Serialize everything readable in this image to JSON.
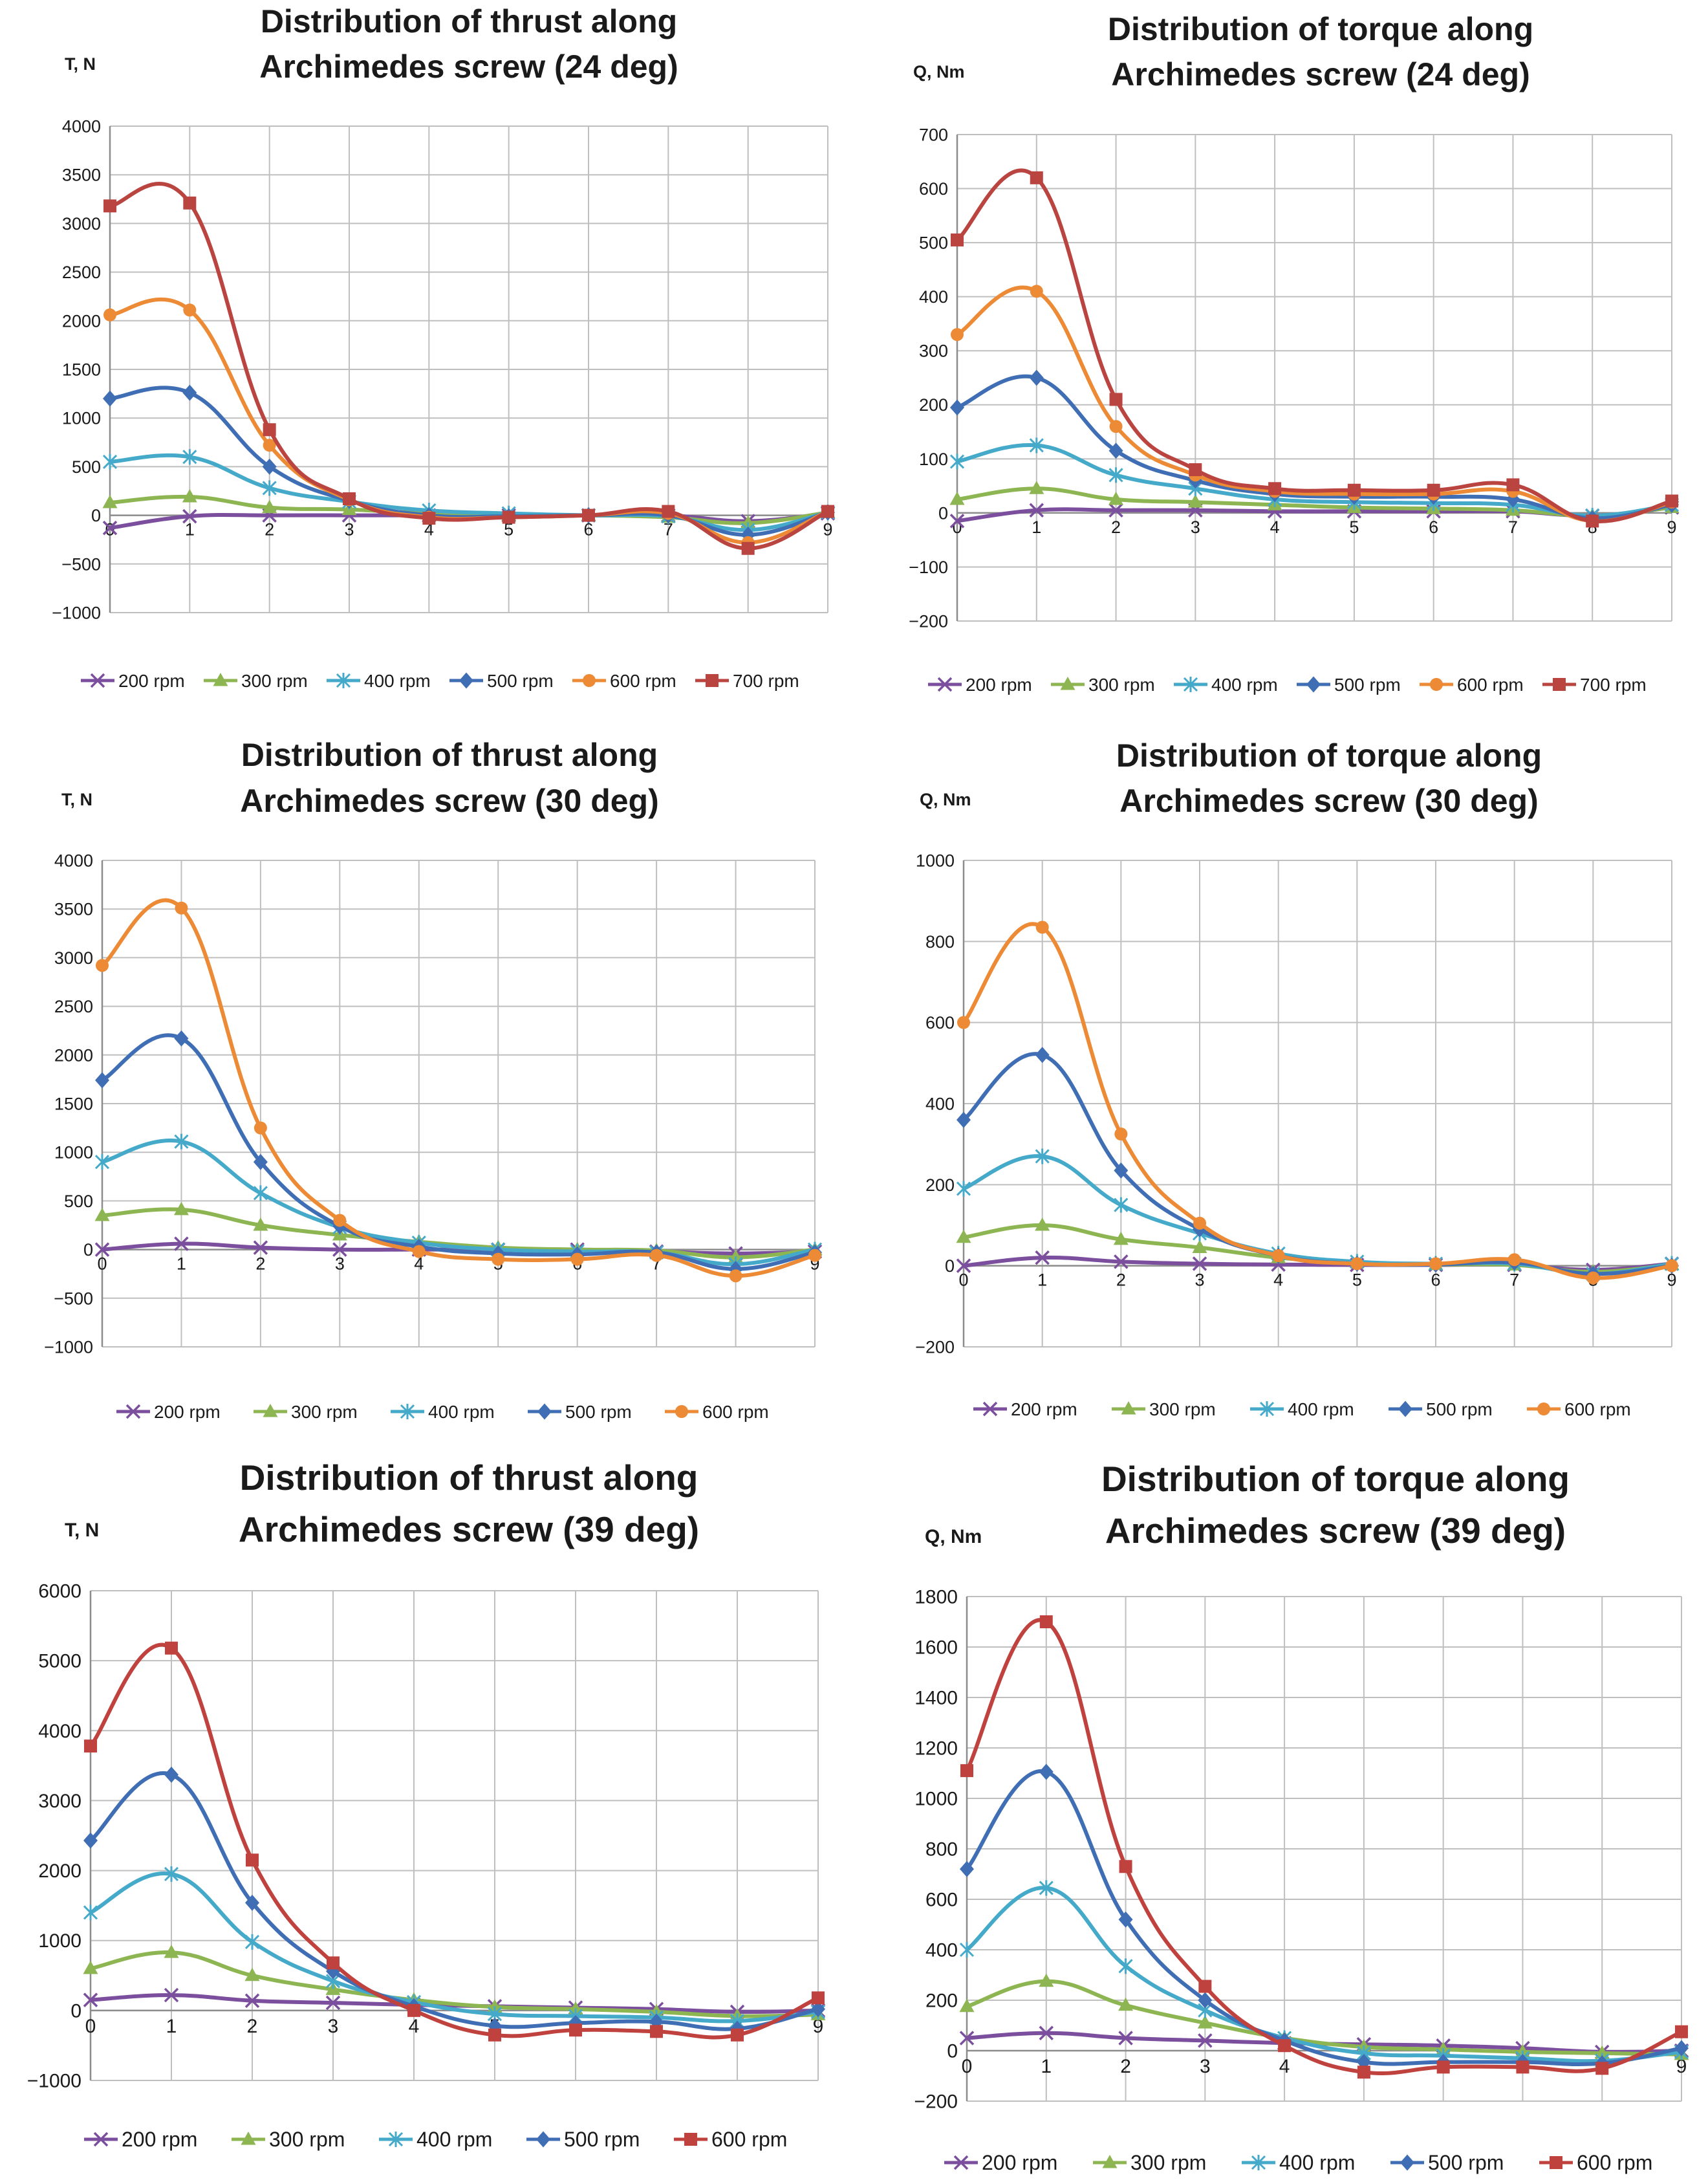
{
  "colors": {
    "200 rpm": "#7b4f9d",
    "300 rpm": "#8db552",
    "400 rpm": "#45aac9",
    "500 rpm": "#3f6eb4",
    "600 rpm": "#ec8a35",
    "600 rpm alt": "#c0423e",
    "700 rpm": "#b94440"
  },
  "chart_data": [
    {
      "type": "line",
      "title": [
        "Distribution of thrust along",
        "Archimedes screw (24 deg)"
      ],
      "ylabel": "T, N",
      "xlabel": "",
      "x": [
        0,
        1,
        2,
        3,
        4,
        5,
        6,
        7,
        8,
        9
      ],
      "ylim": [
        -1000,
        4000
      ],
      "ystep": 500,
      "yticks": [
        "−1000",
        "−500",
        "0",
        "500",
        "1000",
        "1500",
        "2000",
        "2500",
        "3000",
        "3500",
        "4000"
      ],
      "xticks": [
        "0",
        "1",
        "2",
        "3",
        "4",
        "5",
        "6",
        "7",
        "8",
        "9"
      ],
      "grid": true,
      "legend": "bottom",
      "series": [
        {
          "name": "200 rpm",
          "marker": "x",
          "colorKey": "200 rpm",
          "values": [
            -130,
            -10,
            0,
            0,
            0,
            0,
            0,
            0,
            -60,
            20
          ]
        },
        {
          "name": "300 rpm",
          "marker": "triangle",
          "colorKey": "300 rpm",
          "values": [
            130,
            190,
            80,
            60,
            20,
            0,
            0,
            -20,
            -80,
            30
          ]
        },
        {
          "name": "400 rpm",
          "marker": "star",
          "colorKey": "400 rpm",
          "values": [
            550,
            600,
            280,
            140,
            50,
            20,
            0,
            -10,
            -150,
            30
          ]
        },
        {
          "name": "500 rpm",
          "marker": "diamond",
          "colorKey": "500 rpm",
          "values": [
            1200,
            1260,
            500,
            150,
            0,
            -10,
            0,
            0,
            -200,
            30
          ]
        },
        {
          "name": "600 rpm",
          "marker": "circle",
          "colorKey": "600 rpm",
          "values": [
            2060,
            2110,
            720,
            160,
            -20,
            -20,
            0,
            20,
            -280,
            40
          ]
        },
        {
          "name": "700 rpm",
          "marker": "square",
          "colorKey": "700 rpm",
          "values": [
            3180,
            3210,
            880,
            170,
            -30,
            -20,
            0,
            40,
            -340,
            40
          ]
        }
      ]
    },
    {
      "type": "line",
      "title": [
        "Distribution of torque along",
        "Archimedes screw (24 deg)"
      ],
      "ylabel": "Q, Nm",
      "xlabel": "",
      "x": [
        0,
        1,
        2,
        3,
        4,
        5,
        6,
        7,
        8,
        9
      ],
      "ylim": [
        -200,
        700
      ],
      "ystep": 100,
      "yticks": [
        "−200",
        "−100",
        "0",
        "100",
        "200",
        "300",
        "400",
        "500",
        "600",
        "700"
      ],
      "xticks": [
        "0",
        "1",
        "2",
        "3",
        "4",
        "5",
        "6",
        "7",
        "8",
        "9"
      ],
      "grid": true,
      "legend": "bottom",
      "series": [
        {
          "name": "200 rpm",
          "marker": "x",
          "colorKey": "200 rpm",
          "values": [
            -15,
            5,
            5,
            5,
            3,
            3,
            3,
            3,
            -5,
            10
          ]
        },
        {
          "name": "300 rpm",
          "marker": "triangle",
          "colorKey": "300 rpm",
          "values": [
            25,
            45,
            25,
            20,
            15,
            10,
            8,
            5,
            -5,
            10
          ]
        },
        {
          "name": "400 rpm",
          "marker": "star",
          "colorKey": "400 rpm",
          "values": [
            95,
            125,
            70,
            45,
            25,
            20,
            18,
            15,
            -5,
            15
          ]
        },
        {
          "name": "500 rpm",
          "marker": "diamond",
          "colorKey": "500 rpm",
          "values": [
            195,
            250,
            115,
            60,
            35,
            30,
            30,
            25,
            -10,
            15
          ]
        },
        {
          "name": "600 rpm",
          "marker": "circle",
          "colorKey": "600 rpm",
          "values": [
            330,
            410,
            160,
            70,
            40,
            35,
            35,
            40,
            -15,
            20
          ]
        },
        {
          "name": "700 rpm",
          "marker": "square",
          "colorKey": "700 rpm",
          "values": [
            505,
            620,
            210,
            80,
            45,
            42,
            42,
            52,
            -15,
            22
          ]
        }
      ]
    },
    {
      "type": "line",
      "title": [
        "Distribution of thrust along",
        "Archimedes screw (30 deg)"
      ],
      "ylabel": "T, N",
      "xlabel": "",
      "x": [
        0,
        1,
        2,
        3,
        4,
        5,
        6,
        7,
        8,
        9
      ],
      "ylim": [
        -1000,
        4000
      ],
      "ystep": 500,
      "yticks": [
        "−1000",
        "−500",
        "0",
        "500",
        "1000",
        "1500",
        "2000",
        "2500",
        "3000",
        "3500",
        "4000"
      ],
      "xticks": [
        "0",
        "1",
        "2",
        "3",
        "4",
        "5",
        "6",
        "7",
        "8",
        "9"
      ],
      "grid": true,
      "legend": "bottom",
      "series": [
        {
          "name": "200 rpm",
          "marker": "x",
          "colorKey": "200 rpm",
          "values": [
            0,
            60,
            20,
            0,
            0,
            0,
            0,
            -20,
            -40,
            -20
          ]
        },
        {
          "name": "300 rpm",
          "marker": "triangle",
          "colorKey": "300 rpm",
          "values": [
            350,
            410,
            250,
            150,
            80,
            20,
            0,
            -10,
            -80,
            0
          ]
        },
        {
          "name": "400 rpm",
          "marker": "star",
          "colorKey": "400 rpm",
          "values": [
            900,
            1110,
            580,
            230,
            70,
            0,
            -20,
            -30,
            -150,
            0
          ]
        },
        {
          "name": "500 rpm",
          "marker": "diamond",
          "colorKey": "500 rpm",
          "values": [
            1740,
            2170,
            900,
            240,
            30,
            -40,
            -50,
            -30,
            -200,
            -30
          ]
        },
        {
          "name": "600 rpm",
          "marker": "circle",
          "colorKey": "600 rpm",
          "values": [
            2920,
            3510,
            1250,
            300,
            -20,
            -100,
            -100,
            -60,
            -270,
            -60
          ]
        }
      ]
    },
    {
      "type": "line",
      "title": [
        "Distribution of torque along",
        "Archimedes screw (30 deg)"
      ],
      "ylabel": "Q, Nm",
      "xlabel": "",
      "x": [
        0,
        1,
        2,
        3,
        4,
        5,
        6,
        7,
        8,
        9
      ],
      "ylim": [
        -200,
        1000
      ],
      "ystep": 200,
      "yticks": [
        "−200",
        "0",
        "200",
        "400",
        "600",
        "800",
        "1000"
      ],
      "xticks": [
        "0",
        "1",
        "2",
        "3",
        "4",
        "5",
        "6",
        "7",
        "8",
        "9"
      ],
      "grid": true,
      "legend": "bottom",
      "series": [
        {
          "name": "200 rpm",
          "marker": "x",
          "colorKey": "200 rpm",
          "values": [
            0,
            20,
            10,
            5,
            3,
            2,
            2,
            2,
            -10,
            5
          ]
        },
        {
          "name": "300 rpm",
          "marker": "triangle",
          "colorKey": "300 rpm",
          "values": [
            70,
            100,
            65,
            45,
            20,
            8,
            3,
            2,
            -15,
            3
          ]
        },
        {
          "name": "400 rpm",
          "marker": "star",
          "colorKey": "400 rpm",
          "values": [
            190,
            270,
            150,
            80,
            30,
            10,
            5,
            5,
            -20,
            5
          ]
        },
        {
          "name": "500 rpm",
          "marker": "diamond",
          "colorKey": "500 rpm",
          "values": [
            360,
            520,
            235,
            90,
            25,
            5,
            3,
            8,
            -20,
            0
          ]
        },
        {
          "name": "600 rpm",
          "marker": "circle",
          "colorKey": "600 rpm",
          "values": [
            600,
            835,
            325,
            105,
            25,
            5,
            5,
            15,
            -30,
            0
          ]
        }
      ]
    },
    {
      "type": "line",
      "title": [
        "Distribution of thrust along",
        "Archimedes screw (39 deg)"
      ],
      "ylabel": "T, N",
      "xlabel": "",
      "x": [
        0,
        1,
        2,
        3,
        4,
        5,
        6,
        7,
        8,
        9
      ],
      "ylim": [
        -1000,
        6000
      ],
      "ystep": 1000,
      "yticks": [
        "−1000",
        "0",
        "1000",
        "2000",
        "3000",
        "4000",
        "5000",
        "6000"
      ],
      "xticks": [
        "0",
        "1",
        "2",
        "3",
        "4",
        "5",
        "6",
        "7",
        "8",
        "9"
      ],
      "grid": true,
      "legend": "bottom",
      "series": [
        {
          "name": "200 rpm",
          "marker": "x",
          "colorKey": "200 rpm",
          "values": [
            150,
            220,
            140,
            110,
            80,
            60,
            40,
            20,
            -20,
            0
          ]
        },
        {
          "name": "300 rpm",
          "marker": "triangle",
          "colorKey": "300 rpm",
          "values": [
            600,
            830,
            500,
            300,
            150,
            50,
            20,
            -20,
            -80,
            -60
          ]
        },
        {
          "name": "400 rpm",
          "marker": "star",
          "colorKey": "400 rpm",
          "values": [
            1400,
            1950,
            980,
            420,
            120,
            -50,
            -80,
            -100,
            -150,
            -20
          ]
        },
        {
          "name": "500 rpm",
          "marker": "diamond",
          "colorKey": "500 rpm",
          "values": [
            2430,
            3370,
            1540,
            560,
            60,
            -220,
            -180,
            -160,
            -260,
            20
          ]
        },
        {
          "name": "600 rpm",
          "marker": "square",
          "colorKey": "600 rpm alt",
          "values": [
            3780,
            5180,
            2150,
            680,
            0,
            -350,
            -280,
            -300,
            -350,
            180
          ]
        }
      ]
    },
    {
      "type": "line",
      "title": [
        "Distribution of torque along",
        "Archimedes screw (39 deg)"
      ],
      "ylabel": "Q, Nm",
      "xlabel": "",
      "x": [
        0,
        1,
        2,
        3,
        4,
        5,
        6,
        7,
        8,
        9
      ],
      "ylim": [
        -200,
        1800
      ],
      "ystep": 200,
      "yticks": [
        "−200",
        "0",
        "200",
        "400",
        "600",
        "800",
        "1000",
        "1200",
        "1400",
        "1600",
        "1800"
      ],
      "xticks": [
        "0",
        "1",
        "2",
        "3",
        "4",
        "5",
        "6",
        "7",
        "8",
        "9"
      ],
      "grid": true,
      "legend": "bottom",
      "series": [
        {
          "name": "200 rpm",
          "marker": "x",
          "colorKey": "200 rpm",
          "values": [
            50,
            70,
            50,
            40,
            30,
            25,
            20,
            10,
            -5,
            0
          ]
        },
        {
          "name": "300 rpm",
          "marker": "triangle",
          "colorKey": "300 rpm",
          "values": [
            175,
            275,
            180,
            110,
            50,
            15,
            5,
            -5,
            -10,
            -15
          ]
        },
        {
          "name": "400 rpm",
          "marker": "star",
          "colorKey": "400 rpm",
          "values": [
            400,
            645,
            335,
            160,
            50,
            -10,
            -20,
            -30,
            -40,
            -5
          ]
        },
        {
          "name": "500 rpm",
          "marker": "diamond",
          "colorKey": "500 rpm",
          "values": [
            720,
            1105,
            520,
            200,
            40,
            -45,
            -45,
            -45,
            -50,
            10
          ]
        },
        {
          "name": "600 rpm",
          "marker": "square",
          "colorKey": "600 rpm alt",
          "values": [
            1110,
            1700,
            730,
            255,
            20,
            -85,
            -65,
            -65,
            -70,
            75
          ]
        }
      ]
    }
  ]
}
